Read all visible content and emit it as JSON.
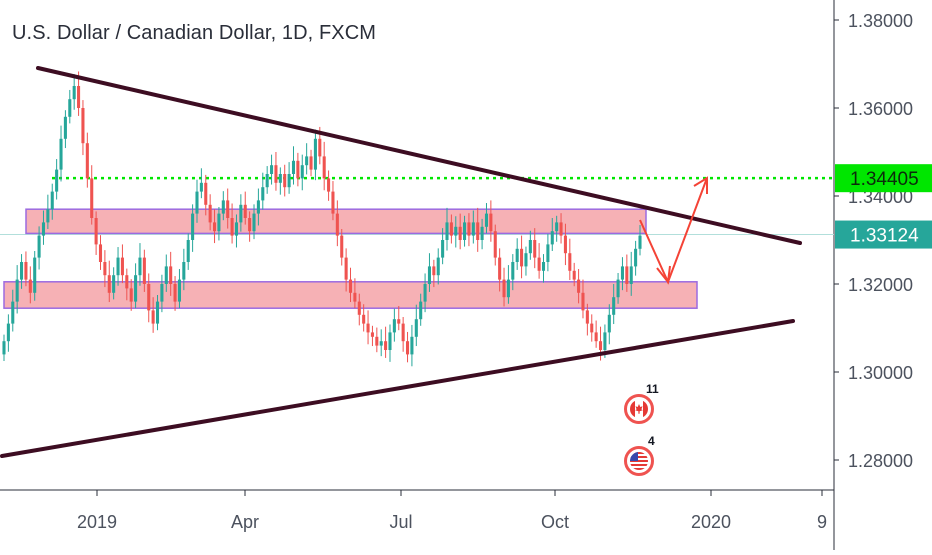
{
  "title": "U.S. Dollar / Canadian Dollar, 1D, FXCM",
  "events": [
    {
      "icon": "canada-flag-icon",
      "count": "11"
    },
    {
      "icon": "usa-flag-icon",
      "count": "4"
    }
  ],
  "colors": {
    "up": "#26a69a",
    "down": "#ef5350",
    "trendline": "#3d0d22",
    "zone_fill": "#f5a3a8",
    "zone_border": "#9c6ae0",
    "resistance": "#00e600",
    "current_line": "#b2dfdb",
    "arrow": "#f44336"
  },
  "chart_data": {
    "type": "candlestick",
    "title": "U.S. Dollar / Canadian Dollar, 1D, FXCM",
    "ylim": [
      1.27,
      1.39
    ],
    "y_ticks": [
      "1.28000",
      "1.30000",
      "1.32000",
      "1.34000",
      "1.36000",
      "1.38000"
    ],
    "x_ticks": [
      "2019",
      "Apr",
      "Jul",
      "Oct",
      "2020",
      "9"
    ],
    "price_labels": [
      {
        "label": "1.34405",
        "value": 1.34405,
        "role": "resistance"
      },
      {
        "label": "1.33124",
        "value": 1.33124,
        "role": "last-price"
      }
    ],
    "closes": [
      1.307,
      1.311,
      1.316,
      1.321,
      1.325,
      1.321,
      1.318,
      1.326,
      1.331,
      1.334,
      1.337,
      1.341,
      1.346,
      1.353,
      1.358,
      1.362,
      1.365,
      1.36,
      1.352,
      1.344,
      1.335,
      1.329,
      1.325,
      1.322,
      1.318,
      1.322,
      1.326,
      1.322,
      1.319,
      1.316,
      1.322,
      1.326,
      1.32,
      1.314,
      1.311,
      1.316,
      1.32,
      1.324,
      1.32,
      1.316,
      1.321,
      1.325,
      1.33,
      1.336,
      1.341,
      1.343,
      1.338,
      1.334,
      1.332,
      1.336,
      1.339,
      1.335,
      1.331,
      1.334,
      1.338,
      1.335,
      1.332,
      1.336,
      1.339,
      1.342,
      1.345,
      1.347,
      1.343,
      1.345,
      1.342,
      1.345,
      1.348,
      1.344,
      1.347,
      1.349,
      1.346,
      1.353,
      1.349,
      1.344,
      1.341,
      1.336,
      1.331,
      1.326,
      1.321,
      1.318,
      1.316,
      1.313,
      1.311,
      1.309,
      1.308,
      1.306,
      1.307,
      1.305,
      1.309,
      1.312,
      1.311,
      1.307,
      1.304,
      1.308,
      1.312,
      1.316,
      1.32,
      1.324,
      1.322,
      1.326,
      1.33,
      1.334,
      1.331,
      1.333,
      1.33,
      1.334,
      1.331,
      1.334,
      1.33,
      1.333,
      1.336,
      1.332,
      1.326,
      1.321,
      1.317,
      1.321,
      1.325,
      1.328,
      1.324,
      1.327,
      1.33,
      1.326,
      1.323,
      1.325,
      1.329,
      1.332,
      1.334,
      1.331,
      1.327,
      1.323,
      1.321,
      1.318,
      1.314,
      1.311,
      1.309,
      1.307,
      1.305,
      1.309,
      1.313,
      1.317,
      1.321,
      1.324,
      1.32,
      1.324,
      1.328,
      1.331
    ],
    "trendlines": [
      {
        "x": [
          "2018-11-01",
          "2020-02-15"
        ],
        "y": [
          1.369,
          1.329
        ]
      },
      {
        "x": [
          "2018-11-01",
          "2020-02-01"
        ],
        "y": [
          1.281,
          1.312
        ]
      }
    ],
    "zones": [
      {
        "y_low": 1.3315,
        "y_high": 1.337
      },
      {
        "y_low": 1.3145,
        "y_high": 1.3205
      }
    ],
    "horizontal_lines": [
      {
        "value": 1.34405,
        "style": "dotted"
      },
      {
        "value": 1.33124,
        "style": "solid"
      }
    ]
  }
}
